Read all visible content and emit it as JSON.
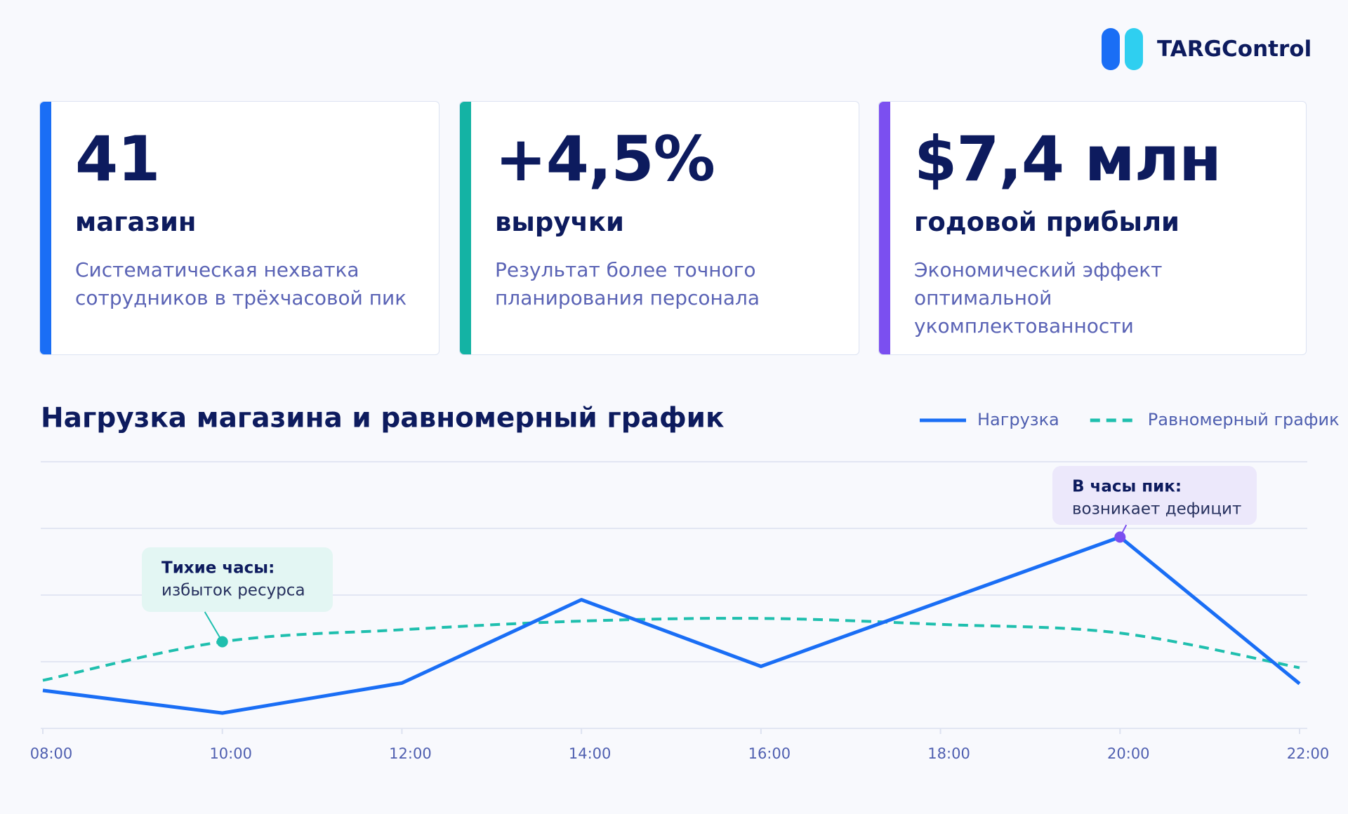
{
  "brand": "TARGControl",
  "cards": [
    {
      "value": "41",
      "label": "магазин",
      "text": [
        "Систематическая нехватка",
        "сотрудников в трёхчасовой пик"
      ],
      "color": "#1a6ef5"
    },
    {
      "value": "+4,5%",
      "label": "выручки",
      "text": [
        "Результат более точного",
        "планирования персонала"
      ],
      "color": "#14b3a4"
    },
    {
      "value": "$7,4 млн",
      "label": "годовой прибыли",
      "text": [
        "Экономический эффект оптимальной",
        "укомплектованности"
      ],
      "color": "#7b4ff0"
    }
  ],
  "chart_data": {
    "type": "line",
    "title": "Нагрузка магазина и равномерный график",
    "categories": [
      "08:00",
      "10:00",
      "12:00",
      "14:00",
      "16:00",
      "18:00",
      "20:00",
      "22:00"
    ],
    "series": [
      {
        "name": "Нагрузка",
        "color": "#1a6ef5",
        "values": [
          0.57,
          0.23,
          0.68,
          1.93,
          0.93,
          1.9,
          2.87,
          0.67
        ]
      },
      {
        "name": "Равномерный график",
        "color": "#1fbfae",
        "dashed": true,
        "smooth": true,
        "values": [
          0.72,
          1.3,
          1.48,
          1.61,
          1.65,
          1.56,
          1.43,
          0.91
        ]
      }
    ],
    "ylim": [
      0,
      4
    ],
    "yticks": [
      0,
      1,
      2,
      3,
      4
    ],
    "grid": true,
    "annotations": [
      {
        "title": "Тихие часы:",
        "text": "избыток ресурса",
        "series": 1,
        "index": 1,
        "color": "#1fbfae",
        "bg": "#e3f6f3"
      },
      {
        "title": "В часы пик:",
        "text": "возникает дефицит",
        "series": 0,
        "index": 6,
        "color": "#7b4ff0",
        "bg": "#ece8fb"
      }
    ]
  }
}
